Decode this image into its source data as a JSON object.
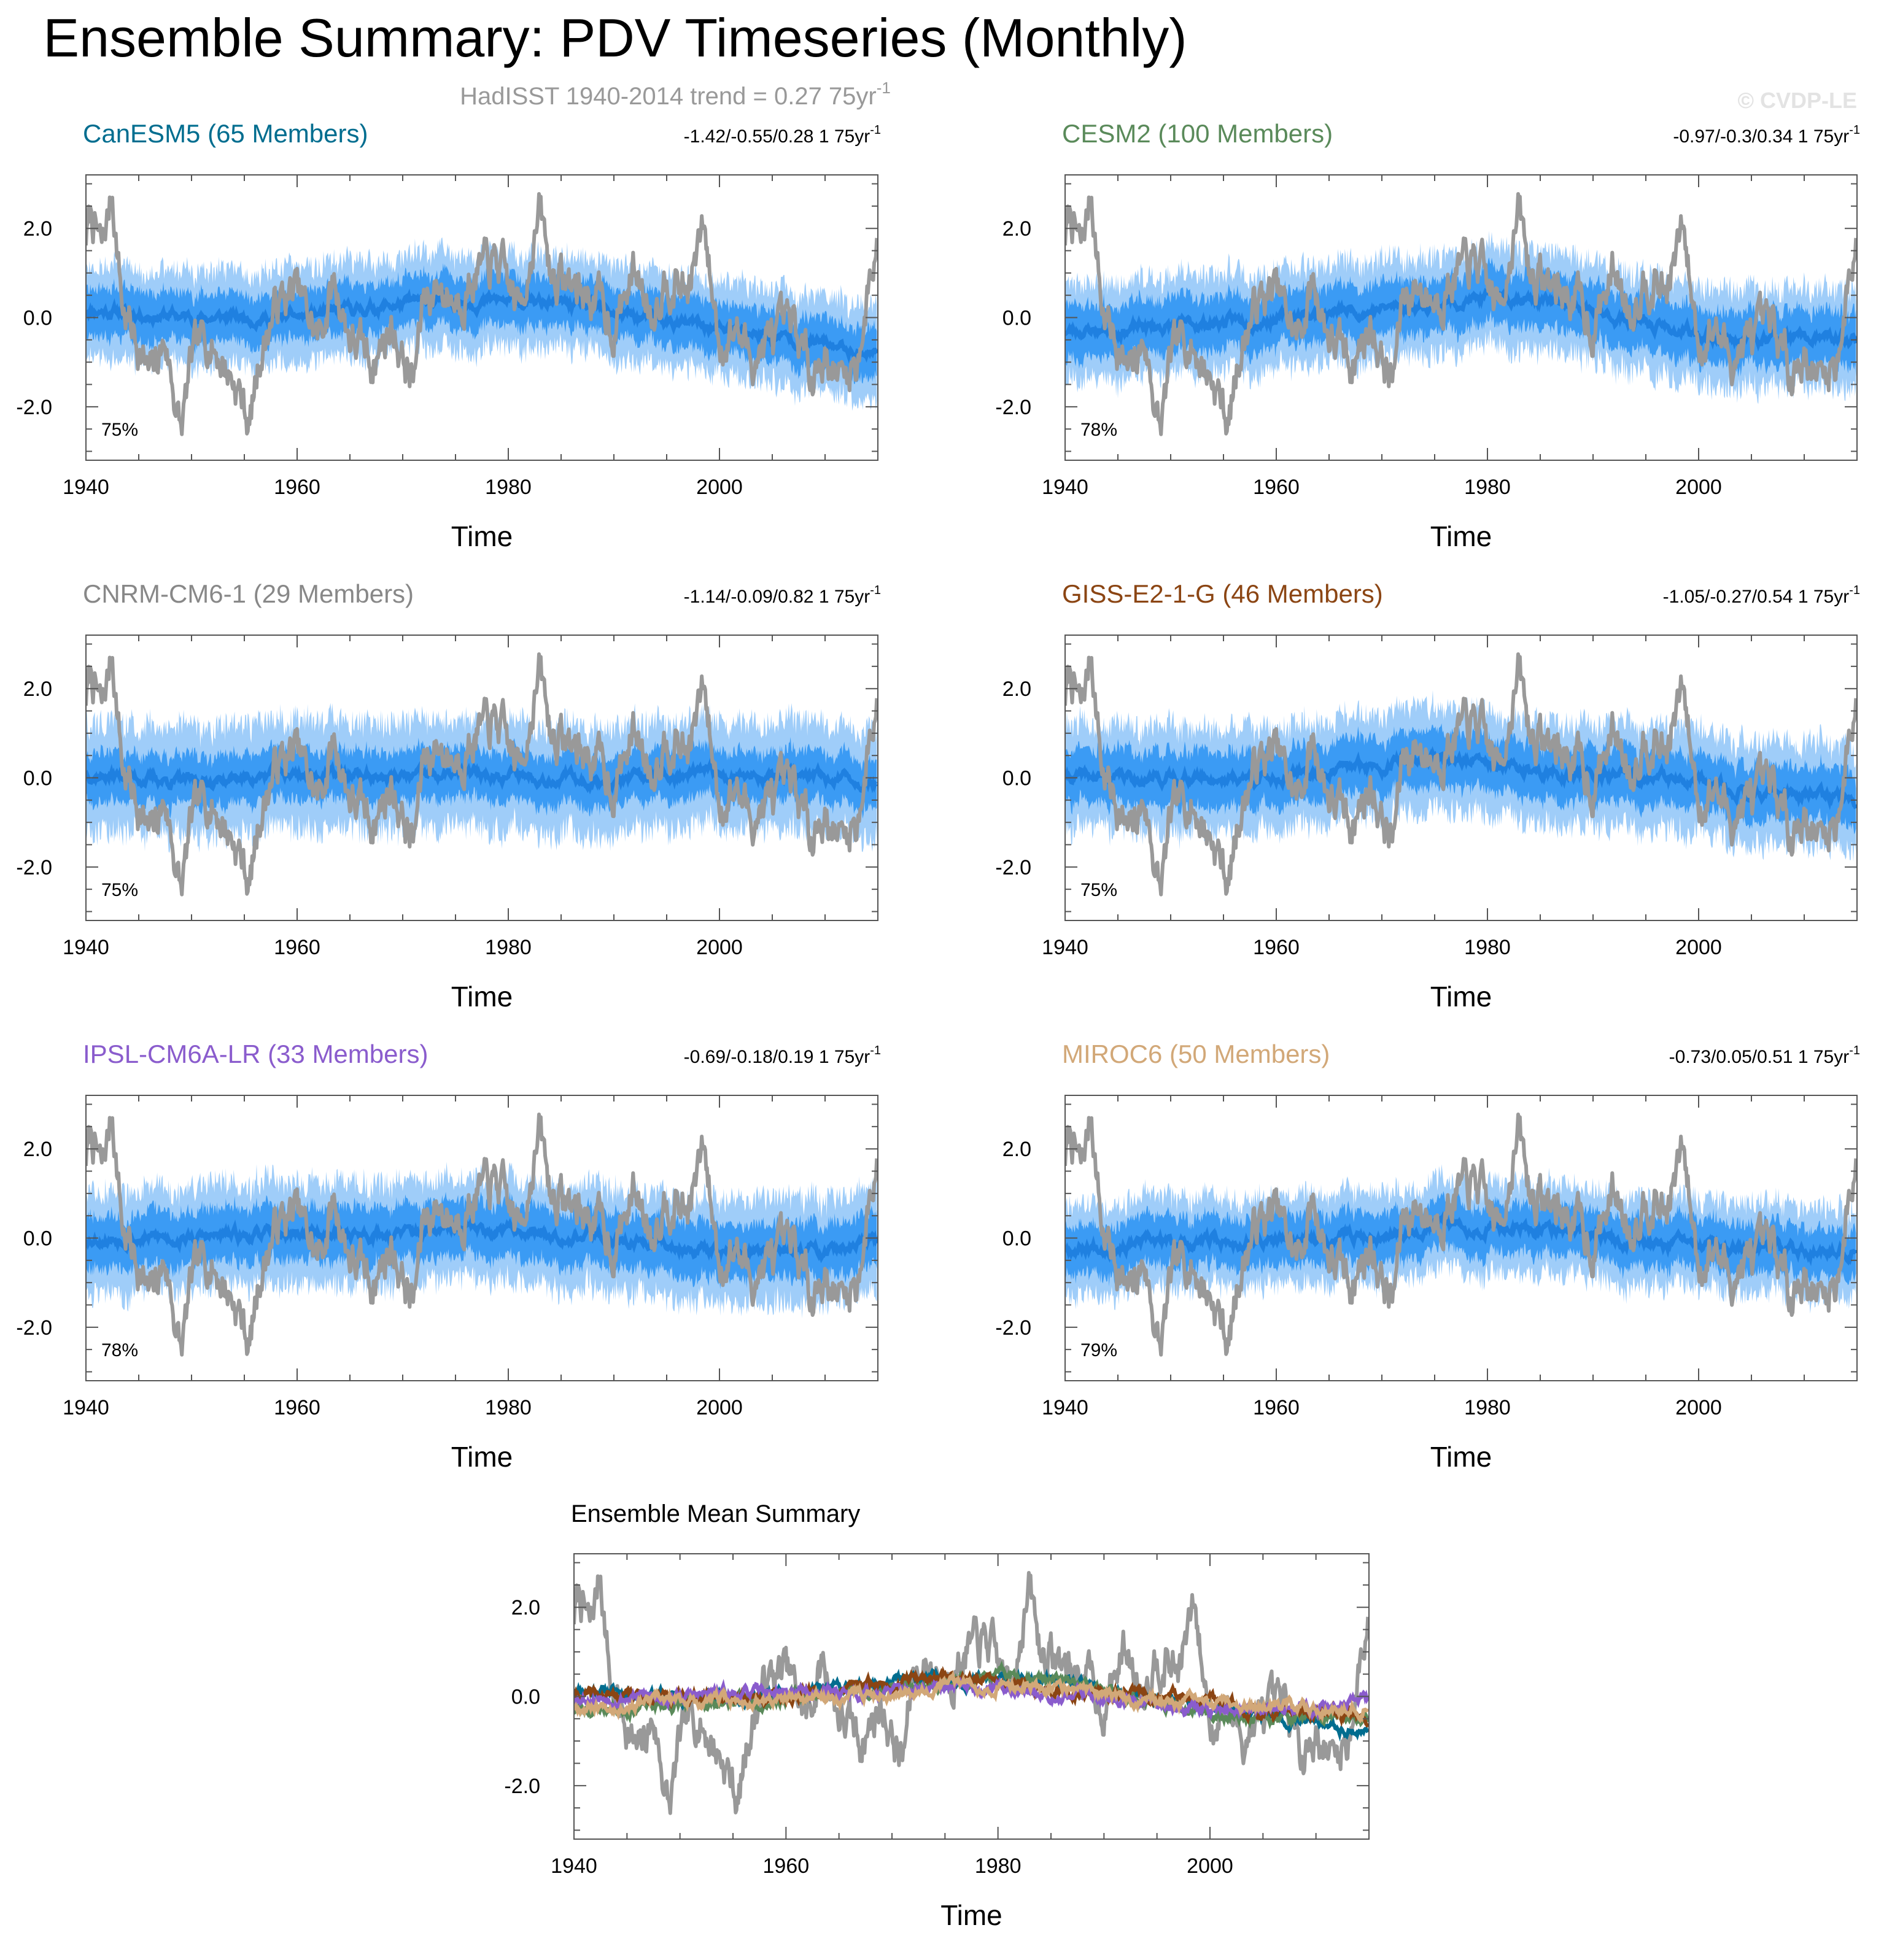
{
  "figure": {
    "title": "Ensemble Summary: PDV Timeseries (Monthly)",
    "subtitle_main": "HadISST 1940-2014 trend = 0.27 75yr",
    "subtitle_sup": "-1",
    "watermark": "© CVDP-LE"
  },
  "colors": {
    "obs": "#999999",
    "band_outer": "#9fcdf9",
    "band_inner": "#3b9bf4",
    "ens_mean": "#1f80e0",
    "axis": "#555555",
    "text": "#000000"
  },
  "chart_data": [
    {
      "type": "line",
      "title": "CanESM5 (65 Members)",
      "title_color": "#006d8f",
      "trend_text": "-1.42/-0.55/0.28 1 75yr",
      "trend_sup": "-1",
      "pct_label": "75%",
      "xlabel": "Time",
      "ylabel": "",
      "xlim": [
        1940,
        2015
      ],
      "ylim": [
        -3.2,
        3.2
      ],
      "xticks": [
        1940,
        1960,
        1980,
        2000
      ],
      "ytick_labels": [
        "2.0",
        "0.0",
        "-2.0"
      ],
      "yticks": [
        2.0,
        0.0,
        -2.0
      ],
      "ens_mean_anchors": {
        "x": [
          1940,
          1950,
          1960,
          1970,
          1975,
          1985,
          1995,
          2005,
          2014.9
        ],
        "y": [
          0.2,
          0.0,
          0.0,
          0.3,
          0.4,
          0.3,
          -0.1,
          -0.4,
          -0.8
        ]
      },
      "spread_inner": 0.55,
      "spread_outer": 1.05,
      "noise_seed": 11
    },
    {
      "type": "line",
      "title": "CESM2 (100 Members)",
      "title_color": "#5a8a5a",
      "trend_text": "-0.97/-0.3/0.34 1 75yr",
      "trend_sup": "-1",
      "pct_label": "78%",
      "xlabel": "Time",
      "ylabel": "",
      "xlim": [
        1940,
        2015
      ],
      "ylim": [
        -3.2,
        3.2
      ],
      "xticks": [
        1940,
        1960,
        1980,
        2000
      ],
      "ytick_labels": [
        "2.0",
        "0.0",
        "-2.0"
      ],
      "yticks": [
        2.0,
        0.0,
        -2.0
      ],
      "ens_mean_anchors": {
        "x": [
          1940,
          1950,
          1960,
          1970,
          1983,
          1990,
          2000,
          2010,
          2014.9
        ],
        "y": [
          -0.3,
          -0.2,
          0.0,
          0.2,
          0.5,
          0.1,
          -0.4,
          -0.5,
          -0.5
        ]
      },
      "spread_inner": 0.6,
      "spread_outer": 1.1,
      "noise_seed": 23
    },
    {
      "type": "line",
      "title": "CNRM-CM6-1 (29 Members)",
      "title_color": "#888888",
      "trend_text": "-1.14/-0.09/0.82 1 75yr",
      "trend_sup": "-1",
      "pct_label": "75%",
      "xlabel": "Time",
      "ylabel": "",
      "xlim": [
        1940,
        2015
      ],
      "ylim": [
        -3.2,
        3.2
      ],
      "xticks": [
        1940,
        1960,
        1980,
        2000
      ],
      "ytick_labels": [
        "2.0",
        "0.0",
        "-2.0"
      ],
      "yticks": [
        2.0,
        0.0,
        -2.0
      ],
      "ens_mean_anchors": {
        "x": [
          1940,
          1950,
          1960,
          1970,
          1980,
          1990,
          2000,
          2010,
          2014.9
        ],
        "y": [
          0.1,
          -0.1,
          0.1,
          0.0,
          0.1,
          -0.1,
          0.1,
          0.0,
          -0.1
        ]
      },
      "spread_inner": 0.55,
      "spread_outer": 1.2,
      "noise_seed": 37
    },
    {
      "type": "line",
      "title": "GISS-E2-1-G (46 Members)",
      "title_color": "#8b4513",
      "trend_text": "-1.05/-0.27/0.54 1 75yr",
      "trend_sup": "-1",
      "pct_label": "75%",
      "xlabel": "Time",
      "ylabel": "",
      "xlim": [
        1940,
        2015
      ],
      "ylim": [
        -3.2,
        3.2
      ],
      "xticks": [
        1940,
        1960,
        1980,
        2000
      ],
      "ytick_labels": [
        "2.0",
        "0.0",
        "-2.0"
      ],
      "yticks": [
        2.0,
        0.0,
        -2.0
      ],
      "ens_mean_anchors": {
        "x": [
          1940,
          1950,
          1960,
          1970,
          1975,
          1985,
          1995,
          2005,
          2014.9
        ],
        "y": [
          0.0,
          0.0,
          0.0,
          0.3,
          0.5,
          0.1,
          0.0,
          -0.3,
          -0.5
        ]
      },
      "spread_inner": 0.6,
      "spread_outer": 1.15,
      "noise_seed": 41
    },
    {
      "type": "line",
      "title": "IPSL-CM6A-LR (33 Members)",
      "title_color": "#8a5ccd",
      "trend_text": "-0.69/-0.18/0.19 1 75yr",
      "trend_sup": "-1",
      "pct_label": "78%",
      "xlabel": "Time",
      "ylabel": "",
      "xlim": [
        1940,
        2015
      ],
      "ylim": [
        -3.2,
        3.2
      ],
      "xticks": [
        1940,
        1960,
        1980,
        2000
      ],
      "ytick_labels": [
        "2.0",
        "0.0",
        "-2.0"
      ],
      "yticks": [
        2.0,
        0.0,
        -2.0
      ],
      "ens_mean_anchors": {
        "x": [
          1940,
          1950,
          1960,
          1970,
          1980,
          1990,
          2000,
          2010,
          2014.9
        ],
        "y": [
          0.0,
          0.0,
          0.1,
          0.1,
          0.2,
          0.0,
          -0.3,
          -0.3,
          -0.1
        ]
      },
      "spread_inner": 0.6,
      "spread_outer": 1.15,
      "noise_seed": 53
    },
    {
      "type": "line",
      "title": "MIROC6 (50 Members)",
      "title_color": "#d2a878",
      "trend_text": "-0.73/0.05/0.51 1 75yr",
      "trend_sup": "-1",
      "pct_label": "79%",
      "xlabel": "Time",
      "ylabel": "",
      "xlim": [
        1940,
        2015
      ],
      "ylim": [
        -3.2,
        3.2
      ],
      "xticks": [
        1940,
        1960,
        1980,
        2000
      ],
      "ytick_labels": [
        "2.0",
        "0.0",
        "-2.0"
      ],
      "yticks": [
        2.0,
        0.0,
        -2.0
      ],
      "ens_mean_anchors": {
        "x": [
          1940,
          1950,
          1960,
          1970,
          1975,
          1985,
          1995,
          2005,
          2014.9
        ],
        "y": [
          -0.2,
          -0.1,
          -0.1,
          0.1,
          0.3,
          0.2,
          -0.1,
          -0.3,
          -0.2
        ]
      },
      "spread_inner": 0.55,
      "spread_outer": 1.0,
      "noise_seed": 67
    },
    {
      "type": "line",
      "title": "Ensemble Mean Summary",
      "title_color": "#000000",
      "pct_label": "",
      "xlabel": "Time",
      "ylabel": "",
      "xlim": [
        1940,
        2015
      ],
      "ylim": [
        -3.2,
        3.2
      ],
      "xticks": [
        1940,
        1960,
        1980,
        2000
      ],
      "ytick_labels": [
        "2.0",
        "0.0",
        "-2.0"
      ],
      "yticks": [
        2.0,
        0.0,
        -2.0
      ],
      "series": [
        {
          "name": "CanESM5",
          "color": "#006d8f"
        },
        {
          "name": "CESM2",
          "color": "#5a8a5a"
        },
        {
          "name": "GISS-E2-1-G",
          "color": "#8b4513"
        },
        {
          "name": "IPSL-CM6A-LR",
          "color": "#8a5ccd"
        },
        {
          "name": "MIROC6",
          "color": "#d2a878"
        }
      ]
    }
  ],
  "observations": {
    "name": "HadISST",
    "anchors": {
      "x": [
        1940,
        1940.5,
        1941.5,
        1942.5,
        1943.5,
        1945,
        1946,
        1947.5,
        1949,
        1950,
        1951.5,
        1953,
        1954.5,
        1955.5,
        1956.5,
        1958,
        1960,
        1962,
        1963.5,
        1965,
        1967,
        1969,
        1971,
        1972,
        1973.5,
        1975,
        1977,
        1979,
        1981,
        1983,
        1984,
        1985.5,
        1987,
        1988.5,
        1990,
        1992,
        1993.5,
        1995,
        1997,
        1998.5,
        2000,
        2001.5,
        2003,
        2005,
        2007,
        2008.5,
        2010,
        2011.5,
        2013,
        2014,
        2014.9
      ],
      "y": [
        1.8,
        2.3,
        1.5,
        2.8,
        0.2,
        -0.6,
        -1.4,
        -0.5,
        -2.6,
        -1.0,
        -0.4,
        -1.0,
        -1.6,
        -2.4,
        -0.8,
        0.3,
        0.6,
        -0.5,
        0.8,
        -0.4,
        -1.0,
        -0.2,
        -1.5,
        0.5,
        0.7,
        0.4,
        1.0,
        1.2,
        0.2,
        2.4,
        1.0,
        0.8,
        0.6,
        0.4,
        -0.2,
        1.1,
        0.2,
        1.0,
        0.6,
        2.0,
        -0.6,
        -0.2,
        -0.9,
        -0.5,
        -0.3,
        -1.1,
        -0.8,
        -1.4,
        -1.0,
        0.4,
        1.8
      ]
    }
  }
}
